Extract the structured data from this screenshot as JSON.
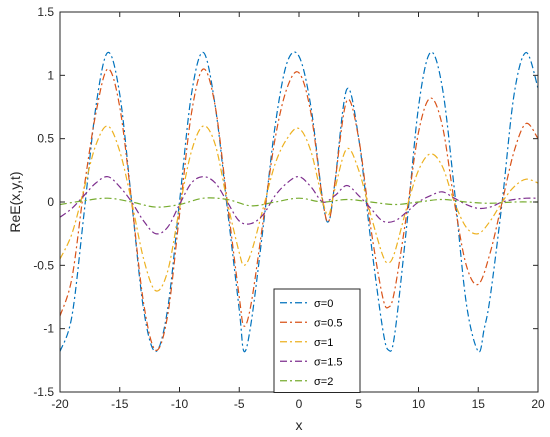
{
  "chart_data": {
    "type": "line",
    "title": "",
    "xlabel": "x",
    "ylabel": "ReE(x,y,t)",
    "xlim": [
      -20,
      20
    ],
    "ylim": [
      -1.5,
      1.5
    ],
    "xticks": [
      -20,
      -15,
      -10,
      -5,
      0,
      5,
      10,
      15,
      20
    ],
    "xtick_labels": [
      "-20",
      "-15",
      "-10",
      "-5",
      "0",
      "5",
      "10",
      "15",
      "20"
    ],
    "yticks": [
      -1.5,
      -1,
      -0.5,
      0,
      0.5,
      1,
      1.5
    ],
    "ytick_labels": [
      "-1.5",
      "-1",
      "-0.5",
      "0",
      "0.5",
      "1",
      "1.5"
    ],
    "grid": false,
    "legend_position": "bottom-center",
    "series": [
      {
        "name": "σ=0",
        "color": "#0072BD",
        "linestyle": "dash-dot",
        "x": [
          -20,
          -19,
          -18,
          -17,
          -16,
          -15,
          -14,
          -13,
          -12,
          -11,
          -10,
          -9,
          -8,
          -7,
          -6,
          -5,
          -4.6,
          -4,
          -3,
          -2,
          -1,
          0,
          1,
          2,
          2.5,
          3,
          4,
          5,
          6,
          7,
          7.5,
          8,
          9,
          10,
          11,
          12,
          13,
          14,
          15,
          15.5,
          16,
          17,
          18,
          19,
          20
        ],
        "y": [
          -1.18,
          -0.9,
          -0.1,
          0.75,
          1.18,
          0.85,
          0.0,
          -0.85,
          -1.18,
          -0.85,
          0.0,
          0.85,
          1.18,
          0.75,
          -0.05,
          -0.85,
          -1.18,
          -0.95,
          -0.2,
          0.6,
          1.1,
          1.15,
          0.75,
          0.0,
          -0.15,
          0.15,
          0.89,
          0.5,
          -0.3,
          -1.0,
          -1.17,
          -1.05,
          -0.2,
          0.75,
          1.18,
          0.9,
          0.1,
          -0.8,
          -1.18,
          -1.0,
          -0.75,
          0.0,
          0.85,
          1.18,
          0.9
        ]
      },
      {
        "name": "σ=0.5",
        "color": "#D95319",
        "linestyle": "dash-dot",
        "x": [
          -20,
          -19,
          -18,
          -17,
          -16,
          -15,
          -14,
          -13,
          -12,
          -11,
          -10,
          -9,
          -8,
          -7,
          -6,
          -5,
          -4.6,
          -4,
          -3,
          -2,
          -1,
          0,
          1,
          2,
          2.5,
          3,
          4,
          5,
          6,
          7,
          7.5,
          8,
          9,
          10,
          11,
          12,
          13,
          14,
          15,
          16,
          17,
          18,
          19,
          20
        ],
        "y": [
          -0.9,
          -0.6,
          0.1,
          0.7,
          1.05,
          0.75,
          0.0,
          -0.8,
          -1.17,
          -0.9,
          -0.1,
          0.7,
          1.05,
          0.75,
          0.0,
          -0.75,
          -0.98,
          -0.8,
          -0.15,
          0.5,
          0.9,
          1.02,
          0.7,
          0.0,
          -0.15,
          0.15,
          0.8,
          0.5,
          -0.2,
          -0.75,
          -0.83,
          -0.7,
          -0.1,
          0.55,
          0.82,
          0.6,
          0.0,
          -0.5,
          -0.65,
          -0.4,
          0.0,
          0.4,
          0.62,
          0.5
        ]
      },
      {
        "name": "σ=1",
        "color": "#EDB120",
        "linestyle": "dash-dot",
        "x": [
          -20,
          -19,
          -18,
          -17,
          -16,
          -15,
          -14,
          -13,
          -12,
          -11,
          -10,
          -9,
          -8,
          -7,
          -6,
          -5,
          -4.6,
          -4,
          -3,
          -2,
          -1,
          0,
          1,
          2,
          2.5,
          3,
          4,
          5,
          6,
          7,
          7.5,
          8,
          9,
          10,
          11,
          12,
          13,
          14,
          15,
          16,
          17,
          18,
          19,
          20
        ],
        "y": [
          -0.45,
          -0.25,
          0.1,
          0.45,
          0.6,
          0.4,
          0.0,
          -0.45,
          -0.7,
          -0.55,
          -0.05,
          0.4,
          0.6,
          0.45,
          0.0,
          -0.4,
          -0.5,
          -0.4,
          -0.05,
          0.3,
          0.5,
          0.58,
          0.4,
          0.0,
          -0.1,
          0.1,
          0.42,
          0.25,
          -0.1,
          -0.42,
          -0.48,
          -0.4,
          -0.05,
          0.25,
          0.38,
          0.28,
          0.0,
          -0.2,
          -0.25,
          -0.15,
          0.0,
          0.12,
          0.18,
          0.15
        ]
      },
      {
        "name": "σ=1.5",
        "color": "#7E2F8E",
        "linestyle": "dash-dot",
        "x": [
          -20,
          -19,
          -18,
          -17,
          -16,
          -15,
          -14,
          -13,
          -12,
          -11,
          -10,
          -9,
          -8,
          -7,
          -6,
          -5,
          -4,
          -3,
          -2,
          -1,
          0,
          1,
          2,
          3,
          4,
          5,
          6,
          7,
          8,
          9,
          10,
          11,
          12,
          13,
          14,
          15,
          16,
          17,
          18,
          19,
          20
        ],
        "y": [
          -0.12,
          -0.05,
          0.05,
          0.15,
          0.2,
          0.12,
          0.0,
          -0.15,
          -0.25,
          -0.2,
          -0.02,
          0.15,
          0.2,
          0.15,
          0.0,
          -0.15,
          -0.17,
          -0.1,
          0.05,
          0.15,
          0.2,
          0.12,
          0.0,
          0.05,
          0.13,
          0.05,
          -0.05,
          -0.15,
          -0.15,
          -0.08,
          0.0,
          0.05,
          0.08,
          0.03,
          -0.02,
          -0.05,
          -0.04,
          0.0,
          0.02,
          0.03,
          0.03
        ]
      },
      {
        "name": "σ=2",
        "color": "#77AC30",
        "linestyle": "dash-dot",
        "x": [
          -20,
          -18,
          -16,
          -14,
          -12,
          -10,
          -8,
          -6,
          -4,
          -2,
          0,
          2,
          4,
          6,
          8,
          10,
          12,
          14,
          16,
          18,
          20
        ],
        "y": [
          -0.02,
          0.01,
          0.03,
          0.0,
          -0.04,
          -0.02,
          0.03,
          0.02,
          -0.03,
          0.0,
          0.03,
          0.0,
          0.02,
          0.0,
          -0.02,
          0.0,
          0.02,
          0.0,
          -0.01,
          0.0,
          0.0
        ]
      }
    ]
  }
}
